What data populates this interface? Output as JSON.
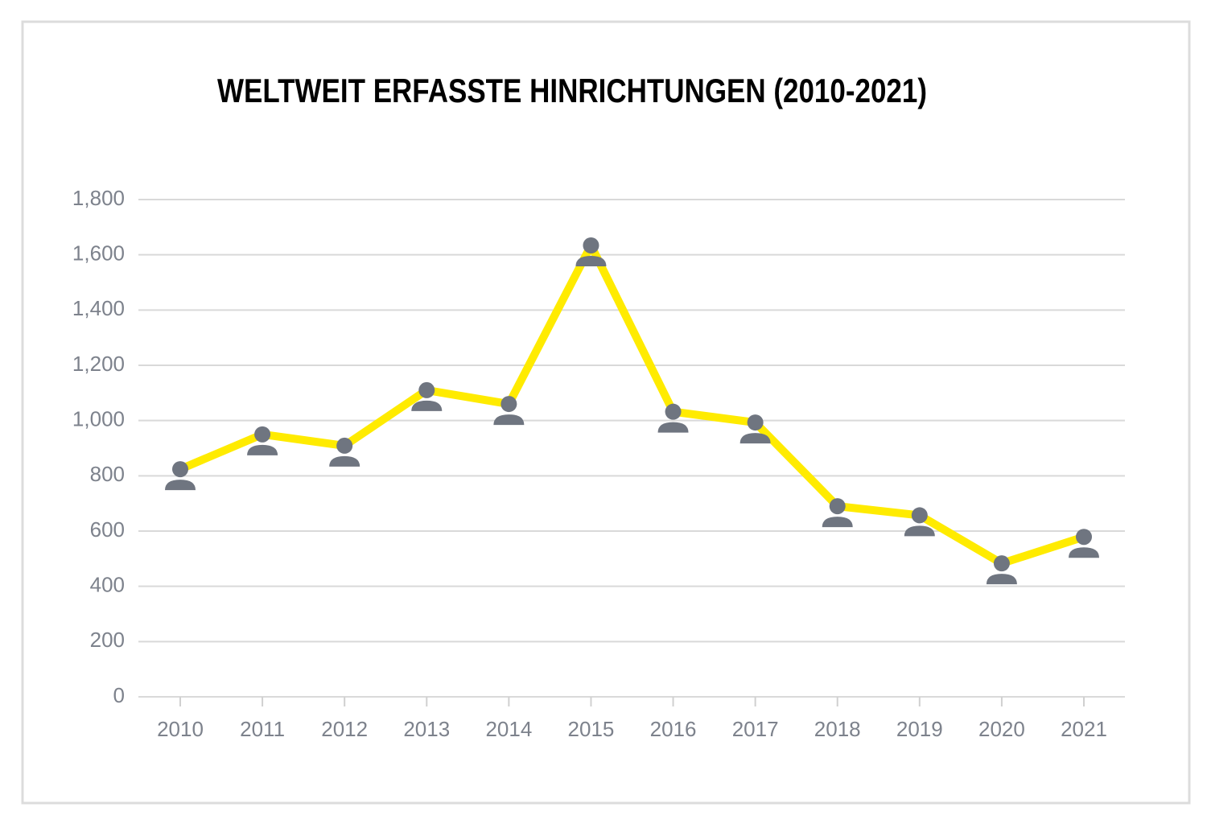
{
  "chart_data": {
    "type": "line",
    "title": "WELTWEIT ERFASSTE HINRICHTUNGEN (2010-2021)",
    "categories": [
      "2010",
      "2011",
      "2012",
      "2013",
      "2014",
      "2015",
      "2016",
      "2017",
      "2018",
      "2019",
      "2020",
      "2021"
    ],
    "series": [
      {
        "color": "#ffeb00",
        "marker_color": "#6f7580",
        "values": [
          824,
          950,
          909,
          1110,
          1060,
          1634,
          1032,
          993,
          690,
          657,
          483,
          579
        ]
      }
    ],
    "ylim": [
      0,
      1800
    ],
    "yticks": [
      0,
      200,
      400,
      600,
      800,
      {
        "value": 1000,
        "label": "1,000"
      },
      {
        "value": 1200,
        "label": "1,200"
      },
      {
        "value": 1400,
        "label": "1,400"
      },
      {
        "value": 1600,
        "label": "1,600"
      },
      {
        "value": 1800,
        "label": "1,800"
      }
    ],
    "grid": true
  }
}
